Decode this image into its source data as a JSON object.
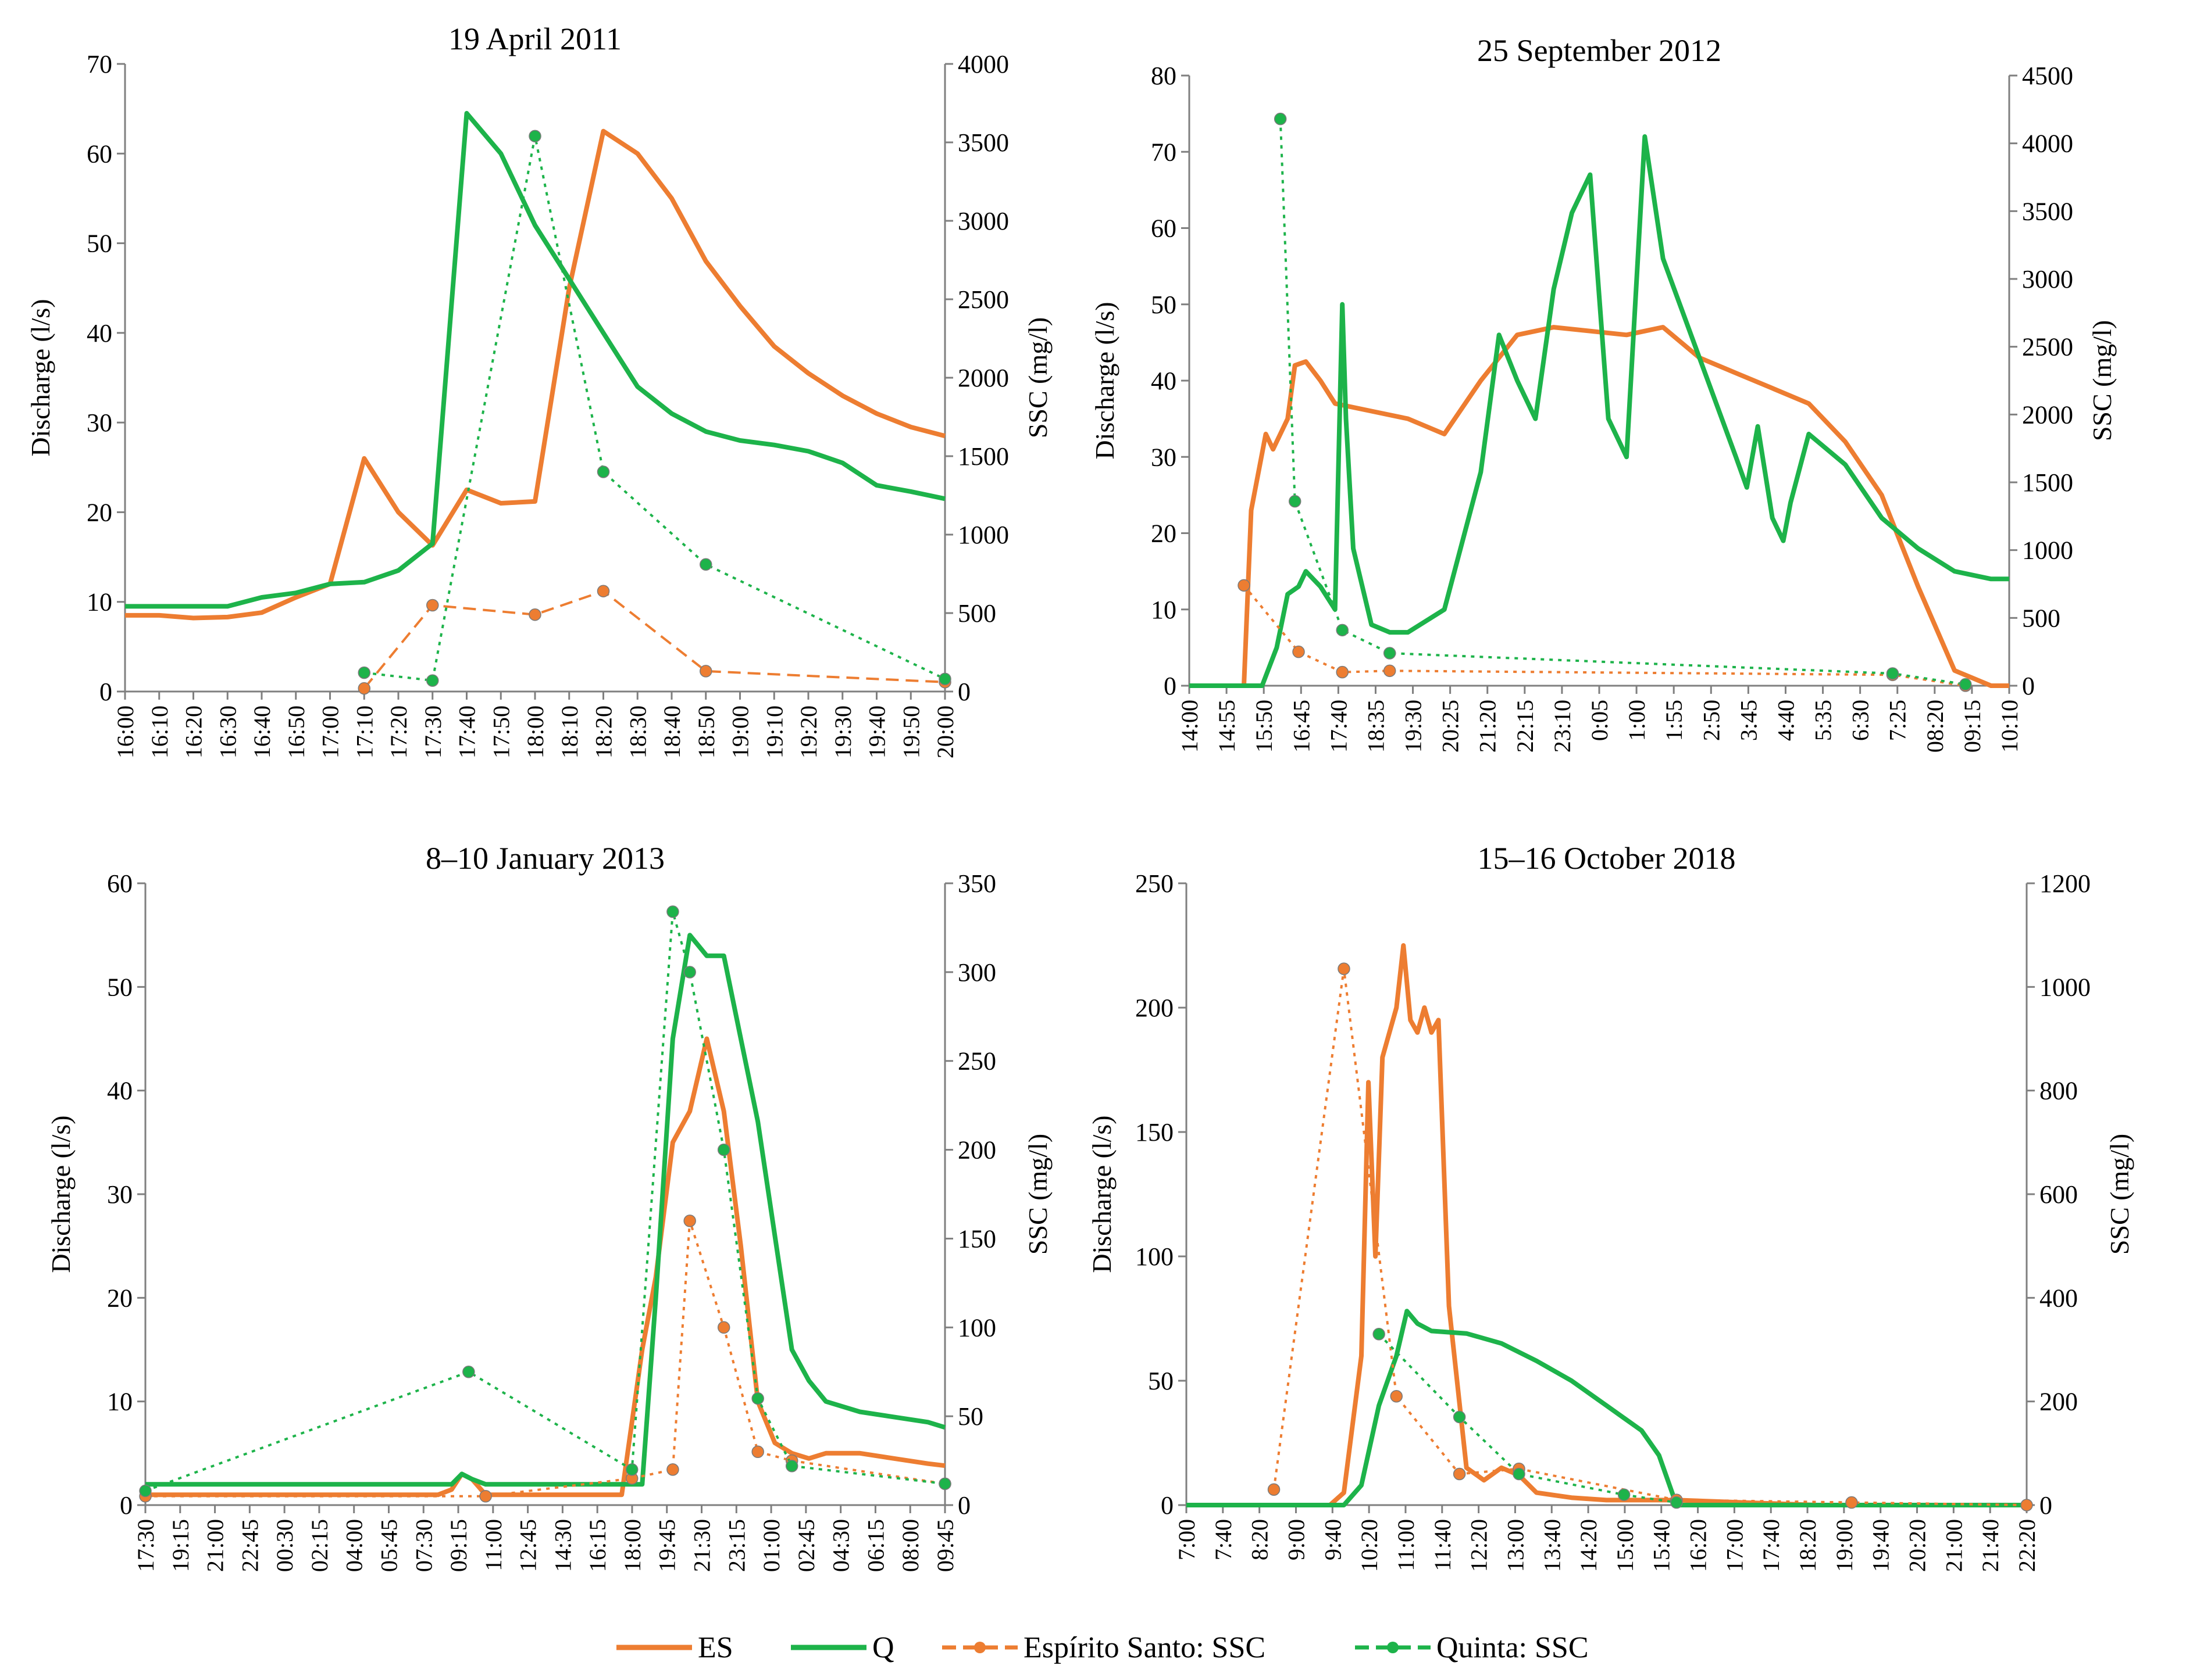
{
  "colors": {
    "es": "#ed7d31",
    "q": "#1db34a",
    "axis": "#7f7f7f"
  },
  "legend": {
    "es": "ES",
    "q": "Q",
    "es_ssc": "Espírito Santo: SSC",
    "q_ssc": "Quinta: SSC"
  },
  "chart_data": [
    {
      "type": "line",
      "title": "19 April 2011",
      "ylabel": "Discharge (l/s)",
      "y2label": "SSC (mg/l)",
      "ylim": [
        0,
        70
      ],
      "yticks": [
        0,
        10,
        20,
        30,
        40,
        50,
        60,
        70
      ],
      "y2lim": [
        0,
        4000
      ],
      "y2ticks": [
        0,
        500,
        1000,
        1500,
        2000,
        2500,
        3000,
        3500,
        4000
      ],
      "x_tick_labels": [
        "16:00",
        "16:10",
        "16:20",
        "16:30",
        "16:40",
        "16:50",
        "17:00",
        "17:10",
        "17:20",
        "17:30",
        "17:40",
        "17:50",
        "18:00",
        "18:10",
        "18:20",
        "18:30",
        "18:40",
        "18:50",
        "19:00",
        "19:10",
        "19:20",
        "19:30",
        "19:40",
        "19:50",
        "20:00"
      ],
      "xlim": [
        0,
        24
      ],
      "series": [
        {
          "name": "ES",
          "kind": "discharge",
          "x": [
            0,
            1,
            2,
            3,
            4,
            5,
            6,
            7,
            8,
            9,
            10,
            11,
            12,
            13,
            14,
            15,
            16,
            17,
            18,
            19,
            20,
            21,
            22,
            23,
            24
          ],
          "values": [
            8.5,
            8.5,
            8.2,
            8.3,
            8.8,
            10.5,
            12,
            26,
            20,
            16.3,
            22.5,
            21,
            21.2,
            45,
            62.5,
            60,
            55,
            48,
            43,
            38.5,
            35.5,
            33,
            31,
            29.5,
            28.5
          ]
        },
        {
          "name": "Q",
          "kind": "discharge",
          "x": [
            0,
            1,
            2,
            3,
            4,
            5,
            6,
            7,
            8,
            9,
            10,
            11,
            12,
            13,
            14,
            15,
            16,
            17,
            18,
            19,
            20,
            21,
            22,
            23,
            24
          ],
          "values": [
            9.5,
            9.5,
            9.5,
            9.5,
            10.5,
            11,
            12,
            12.2,
            13.5,
            16.5,
            64.5,
            60,
            52,
            46,
            40,
            34,
            31,
            29,
            28,
            27.5,
            26.8,
            25.5,
            23,
            22.3,
            21.5
          ]
        },
        {
          "name": "Espírito Santo: SSC",
          "kind": "ssc",
          "x": [
            7,
            9,
            12,
            14,
            17,
            24
          ],
          "values": [
            20,
            550,
            490,
            640,
            130,
            60
          ]
        },
        {
          "name": "Quinta: SSC",
          "kind": "ssc",
          "x": [
            7,
            9,
            12,
            14,
            17,
            24
          ],
          "values": [
            120,
            70,
            3540,
            1400,
            810,
            80
          ]
        }
      ]
    },
    {
      "type": "line",
      "title": "25 September 2012",
      "ylabel": "Discharge (l/s)",
      "y2label": "SSC (mg/l)",
      "ylim": [
        0,
        80
      ],
      "yticks": [
        0,
        10,
        20,
        30,
        40,
        50,
        60,
        70,
        80
      ],
      "y2lim": [
        0,
        4500
      ],
      "y2ticks": [
        0,
        500,
        1000,
        1500,
        2000,
        2500,
        3000,
        3500,
        4000,
        4500
      ],
      "x_tick_labels": [
        "14:00",
        "14:55",
        "15:50",
        "16:45",
        "17:40",
        "18:35",
        "19:30",
        "20:25",
        "21:20",
        "22:15",
        "23:10",
        "0:05",
        "1:00",
        "1:55",
        "2:50",
        "3:45",
        "4:40",
        "5:35",
        "6:30",
        "7:25",
        "08:20",
        "09:15",
        "10:10"
      ],
      "xlim": [
        0,
        22.5
      ],
      "series": [
        {
          "name": "ES",
          "kind": "discharge",
          "x": [
            0,
            1.3,
            1.5,
            1.7,
            2.1,
            2.3,
            2.7,
            2.9,
            3.2,
            3.6,
            4,
            5,
            6,
            7,
            8,
            9,
            10,
            11,
            12,
            13,
            14,
            15,
            16,
            17,
            18,
            19,
            20,
            21,
            22,
            22.5
          ],
          "values": [
            0,
            0,
            0,
            23,
            33,
            31,
            35,
            42,
            42.5,
            40,
            37,
            36,
            35,
            33,
            40,
            46,
            47,
            46.5,
            46,
            47,
            43,
            41,
            39,
            37,
            32,
            25,
            13,
            2,
            0,
            0
          ]
        },
        {
          "name": "Q",
          "kind": "discharge",
          "x": [
            0,
            2,
            2.4,
            2.7,
            3,
            3.2,
            3.6,
            4,
            4.2,
            4.3,
            4.5,
            5,
            5.5,
            6,
            7,
            8,
            8.5,
            9,
            9.5,
            10,
            10.5,
            11,
            11.5,
            12,
            12.5,
            13,
            14,
            15,
            15.3,
            15.6,
            16,
            16.3,
            16.5,
            17,
            18,
            19,
            20,
            21,
            22,
            22.5
          ],
          "values": [
            0,
            0,
            5,
            12,
            13,
            15,
            13,
            10,
            50,
            35,
            18,
            8,
            7,
            7,
            10,
            28,
            46,
            40,
            35,
            52,
            62,
            67,
            35,
            30,
            72,
            56,
            43,
            30,
            26,
            34,
            22,
            19,
            24,
            33,
            29,
            22,
            18,
            15,
            14,
            14
          ]
        },
        {
          "name": "Espírito Santo: SSC",
          "kind": "ssc",
          "x": [
            1.5,
            3,
            4.2,
            5.5,
            19.3,
            21.3
          ],
          "values": [
            740,
            250,
            100,
            110,
            80,
            0
          ]
        },
        {
          "name": "Quinta: SSC",
          "kind": "ssc",
          "x": [
            2.5,
            2.9,
            4.2,
            5.5,
            19.3,
            21.3
          ],
          "values": [
            4180,
            1360,
            410,
            240,
            90,
            10
          ]
        }
      ]
    },
    {
      "type": "line",
      "title": "8–10 January 2013",
      "ylabel": "Discharge (l/s)",
      "y2label": "SSC (mg/l)",
      "ylim": [
        0,
        60
      ],
      "yticks": [
        0,
        10,
        20,
        30,
        40,
        50,
        60
      ],
      "y2lim": [
        0,
        350
      ],
      "y2ticks": [
        0,
        50,
        100,
        150,
        200,
        250,
        300,
        350
      ],
      "x_tick_labels": [
        "17:30",
        "19:15",
        "21:00",
        "22:45",
        "00:30",
        "02:15",
        "04:00",
        "05:45",
        "07:30",
        "09:15",
        "11:00",
        "12:45",
        "14:30",
        "16:15",
        "18:00",
        "19:45",
        "21:30",
        "23:15",
        "01:00",
        "02:45",
        "04:30",
        "06:15",
        "08:00",
        "09:45"
      ],
      "xlim": [
        0,
        23.5
      ],
      "series": [
        {
          "name": "ES",
          "kind": "discharge",
          "x": [
            0,
            8,
            8.6,
            9,
            9.3,
            9.6,
            10,
            11,
            12,
            13,
            13.2,
            13.5,
            14,
            14.3,
            14.6,
            15,
            15.5,
            16,
            16.5,
            17,
            17.5,
            18,
            18.5,
            19,
            19.5,
            20,
            21,
            22,
            23,
            23.5
          ],
          "values": [
            1,
            1,
            1,
            1.5,
            3,
            2.5,
            1,
            1,
            1,
            1,
            1,
            1,
            1,
            8,
            15,
            22,
            35,
            38,
            45,
            38,
            25,
            10,
            6,
            5,
            4.5,
            5,
            5,
            4.5,
            4,
            3.8
          ]
        },
        {
          "name": "Q",
          "kind": "discharge",
          "x": [
            0,
            8,
            9,
            9.3,
            9.6,
            10,
            11,
            12,
            13,
            13.5,
            14,
            14.3,
            14.6,
            15,
            15.5,
            16,
            16.5,
            17,
            17.5,
            18,
            18.5,
            19,
            19.5,
            20,
            21,
            22,
            23,
            23.5
          ],
          "values": [
            2,
            2,
            2,
            3,
            2.5,
            2,
            2,
            2,
            2,
            2,
            2,
            2,
            2,
            20,
            45,
            55,
            53,
            53,
            45,
            37,
            26,
            15,
            12,
            10,
            9,
            8.5,
            8,
            7.5
          ]
        },
        {
          "name": "Espírito Santo: SSC",
          "kind": "ssc",
          "x": [
            0,
            10,
            14.3,
            15.5,
            16,
            17,
            18,
            19,
            23.5
          ],
          "values": [
            5,
            5,
            15,
            20,
            160,
            100,
            30,
            25,
            12
          ]
        },
        {
          "name": "Quinta: SSC",
          "kind": "ssc",
          "x": [
            0,
            9.5,
            14.3,
            15.5,
            16,
            17,
            18,
            19,
            23.5
          ],
          "values": [
            8,
            75,
            20,
            334,
            300,
            200,
            60,
            22,
            12
          ]
        }
      ]
    },
    {
      "type": "line",
      "title": "15–16 October 2018",
      "ylabel": "Discharge (l/s)",
      "y2label": "SSC (mg/l)",
      "ylim": [
        0,
        250
      ],
      "yticks": [
        0,
        50,
        100,
        150,
        200,
        250
      ],
      "y2lim": [
        0,
        1200
      ],
      "y2ticks": [
        0,
        200,
        400,
        600,
        800,
        1000,
        1200
      ],
      "x_tick_labels": [
        "7:00",
        "7:40",
        "8:20",
        "9:00",
        "9:40",
        "10:20",
        "11:00",
        "11:40",
        "12:20",
        "13:00",
        "13:40",
        "14:20",
        "15:00",
        "15:40",
        "16:20",
        "17:00",
        "17:40",
        "18:20",
        "19:00",
        "19:40",
        "20:20",
        "21:00",
        "21:40",
        "22:20"
      ],
      "xlim": [
        0,
        24
      ],
      "series": [
        {
          "name": "ES",
          "kind": "discharge",
          "x": [
            0,
            4.1,
            4.5,
            5,
            5.2,
            5.4,
            5.6,
            5.8,
            6,
            6.2,
            6.4,
            6.6,
            6.8,
            7,
            7.2,
            7.5,
            8,
            8.5,
            9,
            9.5,
            10,
            11,
            12,
            14,
            16,
            18,
            20,
            24
          ],
          "values": [
            0,
            0,
            5,
            60,
            170,
            100,
            180,
            190,
            200,
            225,
            195,
            190,
            200,
            190,
            195,
            80,
            15,
            10,
            15,
            12,
            5,
            3,
            2,
            2,
            1,
            0,
            0,
            0
          ]
        },
        {
          "name": "Q",
          "kind": "discharge",
          "x": [
            0,
            4.5,
            5,
            5.5,
            6,
            6.3,
            6.6,
            7,
            8,
            9,
            10,
            11,
            12,
            13,
            13.5,
            14,
            24
          ],
          "values": [
            0,
            0,
            8,
            40,
            60,
            78,
            73,
            70,
            69,
            65,
            58,
            50,
            40,
            30,
            20,
            0,
            0
          ]
        },
        {
          "name": "Espírito Santo: SSC",
          "kind": "ssc",
          "x": [
            2.5,
            4.5,
            6,
            7.8,
            9.5,
            14,
            19,
            24
          ],
          "values": [
            30,
            1035,
            210,
            60,
            70,
            10,
            5,
            0
          ]
        },
        {
          "name": "Quinta: SSC",
          "kind": "ssc",
          "x": [
            5.5,
            7.8,
            9.5,
            12.5,
            14
          ],
          "values": [
            330,
            170,
            60,
            20,
            5
          ]
        }
      ]
    }
  ]
}
